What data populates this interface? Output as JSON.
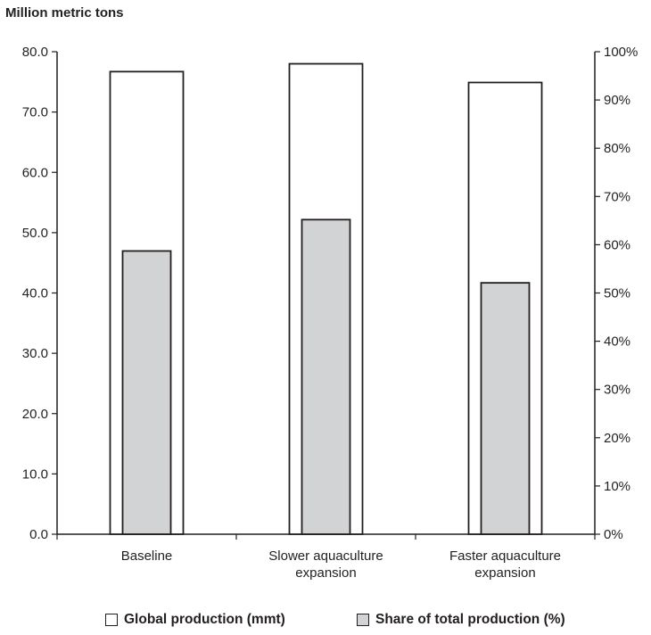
{
  "chart_data": {
    "type": "bar",
    "title": "",
    "ylabel": "Million metric tons",
    "categories": [
      [
        "Baseline"
      ],
      [
        "Slower aquaculture",
        "expansion"
      ],
      [
        "Faster aquaculture",
        "expansion"
      ]
    ],
    "series": [
      {
        "name": "Global production (mmt)",
        "axis": "left",
        "values": [
          76.7,
          78.0,
          74.9
        ],
        "color": "#ffffff"
      },
      {
        "name": "Share of total production (%)",
        "axis": "right",
        "values": [
          58.7,
          65.2,
          52.1
        ],
        "color": "#d1d3d4"
      }
    ],
    "ylim_left": [
      0,
      80
    ],
    "yticks_left": [
      "0.0",
      "10.0",
      "20.0",
      "30.0",
      "40.0",
      "50.0",
      "60.0",
      "70.0",
      "80.0"
    ],
    "ylim_right": [
      0,
      100
    ],
    "yticks_right": [
      "0%",
      "10%",
      "20%",
      "30%",
      "40%",
      "50%",
      "60%",
      "70%",
      "80%",
      "90%",
      "100%"
    ],
    "grid": false,
    "legend_position": "bottom"
  }
}
